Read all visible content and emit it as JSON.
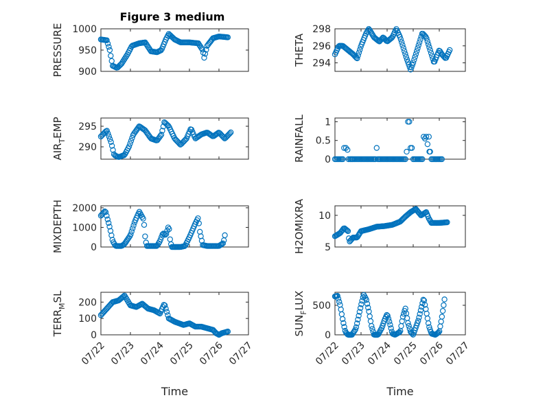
{
  "figure": {
    "title": "Figure 3 medium",
    "marker_color": "#0072bd"
  },
  "chart_data": [
    {
      "type": "scatter",
      "title": "Figure 3 medium",
      "ylabel": {
        "parts": [
          [
            "PRESSURE",
            ""
          ]
        ]
      },
      "xlabel": "",
      "xlim": [
        0,
        5
      ],
      "ylim": [
        900,
        1000
      ],
      "xticks": [
        0,
        1,
        2,
        3,
        4,
        5
      ],
      "xtick_labels": [],
      "yticks": [
        900,
        950,
        1000
      ],
      "ytick_labels": [
        "900",
        "950",
        "1000"
      ],
      "grid": true,
      "anchors": [
        [
          0.0,
          975
        ],
        [
          0.2,
          973
        ],
        [
          0.3,
          950
        ],
        [
          0.35,
          930
        ],
        [
          0.4,
          913
        ],
        [
          0.55,
          908
        ],
        [
          0.7,
          918
        ],
        [
          0.9,
          940
        ],
        [
          1.05,
          960
        ],
        [
          1.3,
          966
        ],
        [
          1.5,
          968
        ],
        [
          1.7,
          947
        ],
        [
          1.9,
          945
        ],
        [
          2.05,
          950
        ],
        [
          2.2,
          975
        ],
        [
          2.3,
          988
        ],
        [
          2.5,
          975
        ],
        [
          2.7,
          968
        ],
        [
          3.0,
          968
        ],
        [
          3.3,
          966
        ],
        [
          3.45,
          950
        ],
        [
          3.5,
          932
        ],
        [
          3.6,
          960
        ],
        [
          3.8,
          978
        ],
        [
          4.0,
          982
        ],
        [
          4.3,
          980
        ]
      ],
      "count": 130
    },
    {
      "type": "scatter",
      "title": "",
      "ylabel": {
        "parts": [
          [
            "THETA",
            ""
          ]
        ]
      },
      "xlabel": "",
      "xlim": [
        0,
        5
      ],
      "ylim": [
        293,
        298
      ],
      "xticks": [
        0,
        1,
        2,
        3,
        4,
        5
      ],
      "xtick_labels": [],
      "yticks": [
        294,
        296,
        298
      ],
      "ytick_labels": [
        "294",
        "296",
        "298"
      ],
      "grid": true,
      "anchors": [
        [
          0.0,
          295
        ],
        [
          0.15,
          296
        ],
        [
          0.3,
          296
        ],
        [
          0.5,
          295.5
        ],
        [
          0.7,
          295
        ],
        [
          0.85,
          294.5
        ],
        [
          1.0,
          296
        ],
        [
          1.2,
          297.5
        ],
        [
          1.3,
          298
        ],
        [
          1.5,
          297
        ],
        [
          1.7,
          296.5
        ],
        [
          1.85,
          297
        ],
        [
          2.0,
          296.5
        ],
        [
          2.2,
          297
        ],
        [
          2.35,
          298
        ],
        [
          2.5,
          297
        ],
        [
          2.6,
          296
        ],
        [
          2.75,
          294.5
        ],
        [
          2.9,
          293.2
        ],
        [
          3.0,
          294
        ],
        [
          3.2,
          296
        ],
        [
          3.35,
          297.5
        ],
        [
          3.5,
          297
        ],
        [
          3.65,
          295.5
        ],
        [
          3.8,
          294
        ],
        [
          4.0,
          295.5
        ],
        [
          4.1,
          295
        ],
        [
          4.25,
          294.5
        ],
        [
          4.4,
          295.5
        ]
      ],
      "count": 130
    },
    {
      "type": "scatter",
      "title": "",
      "ylabel": {
        "parts": [
          [
            "AIR",
            ""
          ],
          [
            "T",
            "sub"
          ],
          [
            "EMP",
            ""
          ]
        ]
      },
      "xlabel": "",
      "xlim": [
        0,
        5
      ],
      "ylim": [
        287,
        297
      ],
      "xticks": [
        0,
        1,
        2,
        3,
        4,
        5
      ],
      "xtick_labels": [],
      "yticks": [
        290,
        295
      ],
      "ytick_labels": [
        "290",
        "295"
      ],
      "grid": true,
      "anchors": [
        [
          0.0,
          292.5
        ],
        [
          0.2,
          294
        ],
        [
          0.35,
          291
        ],
        [
          0.45,
          288
        ],
        [
          0.6,
          287.5
        ],
        [
          0.8,
          288
        ],
        [
          0.95,
          290
        ],
        [
          1.1,
          293
        ],
        [
          1.3,
          295
        ],
        [
          1.5,
          294
        ],
        [
          1.7,
          292
        ],
        [
          1.9,
          291.5
        ],
        [
          2.05,
          293
        ],
        [
          2.15,
          296
        ],
        [
          2.3,
          295
        ],
        [
          2.5,
          292
        ],
        [
          2.7,
          290.5
        ],
        [
          2.9,
          292
        ],
        [
          3.05,
          294.5
        ],
        [
          3.2,
          292
        ],
        [
          3.4,
          293
        ],
        [
          3.6,
          293.5
        ],
        [
          3.8,
          292.5
        ],
        [
          4.0,
          293.5
        ],
        [
          4.2,
          292
        ],
        [
          4.4,
          293.5
        ]
      ],
      "count": 130
    },
    {
      "type": "scatter",
      "title": "",
      "ylabel": {
        "parts": [
          [
            "RAINFALL",
            ""
          ]
        ]
      },
      "xlabel": "",
      "xlim": [
        0,
        5
      ],
      "ylim": [
        0,
        1.1
      ],
      "xticks": [
        0,
        1,
        2,
        3,
        4,
        5
      ],
      "xtick_labels": [],
      "yticks": [
        0,
        0.5,
        1
      ],
      "ytick_labels": [
        "0",
        "0.5",
        "1"
      ],
      "grid": true,
      "points": [
        [
          0.0,
          0
        ],
        [
          0.05,
          0
        ],
        [
          0.1,
          0
        ],
        [
          0.15,
          0
        ],
        [
          0.2,
          0
        ],
        [
          0.25,
          0
        ],
        [
          0.3,
          0
        ],
        [
          0.35,
          0.3
        ],
        [
          0.42,
          0.3
        ],
        [
          0.48,
          0.25
        ],
        [
          0.52,
          0
        ],
        [
          0.58,
          0
        ],
        [
          0.62,
          0
        ],
        [
          0.66,
          0
        ],
        [
          0.7,
          0
        ],
        [
          0.75,
          0
        ],
        [
          0.8,
          0
        ],
        [
          0.85,
          0
        ],
        [
          0.9,
          0
        ],
        [
          0.95,
          0
        ],
        [
          1.0,
          0
        ],
        [
          1.05,
          0
        ],
        [
          1.1,
          0
        ],
        [
          1.15,
          0
        ],
        [
          1.2,
          0
        ],
        [
          1.25,
          0
        ],
        [
          1.3,
          0
        ],
        [
          1.35,
          0
        ],
        [
          1.4,
          0
        ],
        [
          1.45,
          0
        ],
        [
          1.5,
          0
        ],
        [
          1.55,
          0
        ],
        [
          1.6,
          0.3
        ],
        [
          1.65,
          0
        ],
        [
          1.7,
          0
        ],
        [
          1.75,
          0
        ],
        [
          1.8,
          0
        ],
        [
          1.85,
          0
        ],
        [
          1.9,
          0
        ],
        [
          1.95,
          0
        ],
        [
          2.0,
          0
        ],
        [
          2.05,
          0
        ],
        [
          2.1,
          0
        ],
        [
          2.15,
          0
        ],
        [
          2.2,
          0
        ],
        [
          2.25,
          0
        ],
        [
          2.3,
          0
        ],
        [
          2.35,
          0
        ],
        [
          2.4,
          0
        ],
        [
          2.45,
          0
        ],
        [
          2.5,
          0
        ],
        [
          2.55,
          0
        ],
        [
          2.6,
          0
        ],
        [
          2.65,
          0
        ],
        [
          2.7,
          0
        ],
        [
          2.75,
          0.2
        ],
        [
          2.8,
          1.0
        ],
        [
          2.85,
          1.0
        ],
        [
          2.9,
          0.3
        ],
        [
          2.95,
          0.3
        ],
        [
          3.0,
          0
        ],
        [
          3.05,
          0
        ],
        [
          3.1,
          0
        ],
        [
          3.15,
          0
        ],
        [
          3.2,
          0
        ],
        [
          3.25,
          0
        ],
        [
          3.3,
          0
        ],
        [
          3.35,
          0
        ],
        [
          3.4,
          0.6
        ],
        [
          3.45,
          0.55
        ],
        [
          3.5,
          0.6
        ],
        [
          3.55,
          0.4
        ],
        [
          3.6,
          0.6
        ],
        [
          3.62,
          0.2
        ],
        [
          3.65,
          0.2
        ],
        [
          3.7,
          0
        ],
        [
          3.75,
          0
        ],
        [
          3.8,
          0
        ],
        [
          3.85,
          0
        ],
        [
          3.9,
          0
        ],
        [
          3.95,
          0
        ],
        [
          4.0,
          0
        ],
        [
          4.05,
          0
        ],
        [
          4.1,
          0
        ]
      ]
    },
    {
      "type": "scatter",
      "title": "",
      "ylabel": {
        "parts": [
          [
            "MIXDEPTH",
            ""
          ]
        ]
      },
      "xlabel": "",
      "xlim": [
        0,
        5
      ],
      "ylim": [
        0,
        2100
      ],
      "xticks": [
        0,
        1,
        2,
        3,
        4,
        5
      ],
      "xtick_labels": [],
      "yticks": [
        0,
        1000,
        2000
      ],
      "ytick_labels": [
        "0",
        "1000",
        "2000"
      ],
      "grid": true,
      "anchors": [
        [
          0.0,
          1600
        ],
        [
          0.15,
          1850
        ],
        [
          0.3,
          1000
        ],
        [
          0.4,
          300
        ],
        [
          0.5,
          50
        ],
        [
          0.7,
          50
        ],
        [
          0.8,
          150
        ],
        [
          1.0,
          600
        ],
        [
          1.15,
          1300
        ],
        [
          1.3,
          1800
        ],
        [
          1.45,
          1400
        ],
        [
          1.5,
          500
        ],
        [
          1.55,
          50
        ],
        [
          1.75,
          50
        ],
        [
          1.9,
          50
        ],
        [
          2.0,
          300
        ],
        [
          2.1,
          700
        ],
        [
          2.2,
          600
        ],
        [
          2.3,
          1100
        ],
        [
          2.35,
          300
        ],
        [
          2.4,
          0
        ],
        [
          2.7,
          0
        ],
        [
          2.85,
          50
        ],
        [
          3.0,
          500
        ],
        [
          3.2,
          1200
        ],
        [
          3.3,
          1500
        ],
        [
          3.35,
          800
        ],
        [
          3.45,
          100
        ],
        [
          3.6,
          50
        ],
        [
          4.0,
          50
        ],
        [
          4.15,
          200
        ],
        [
          4.2,
          600
        ]
      ],
      "count": 130
    },
    {
      "type": "scatter",
      "title": "",
      "ylabel": {
        "parts": [
          [
            "H2OMIXRA",
            ""
          ]
        ]
      },
      "xlabel": "",
      "xlim": [
        0,
        5
      ],
      "ylim": [
        5,
        11.5
      ],
      "xticks": [
        0,
        1,
        2,
        3,
        4,
        5
      ],
      "xtick_labels": [],
      "yticks": [
        5,
        10
      ],
      "ytick_labels": [
        "5",
        "10"
      ],
      "grid": true,
      "anchors": [
        [
          0.0,
          6.7
        ],
        [
          0.2,
          7.2
        ],
        [
          0.35,
          8.0
        ],
        [
          0.5,
          7.5
        ],
        [
          0.55,
          5.8
        ],
        [
          0.7,
          6.5
        ],
        [
          0.85,
          6.5
        ],
        [
          1.0,
          7.5
        ],
        [
          1.3,
          7.8
        ],
        [
          1.6,
          8.2
        ],
        [
          1.9,
          8.3
        ],
        [
          2.2,
          8.5
        ],
        [
          2.5,
          9.0
        ],
        [
          2.7,
          9.8
        ],
        [
          2.9,
          10.5
        ],
        [
          3.1,
          11.0
        ],
        [
          3.3,
          10.0
        ],
        [
          3.5,
          10.5
        ],
        [
          3.6,
          9.5
        ],
        [
          3.7,
          8.8
        ],
        [
          4.0,
          8.8
        ],
        [
          4.3,
          8.9
        ]
      ],
      "count": 130
    },
    {
      "type": "scatter",
      "title": "",
      "ylabel": {
        "parts": [
          [
            "TERR",
            ""
          ],
          [
            "M",
            "sub"
          ],
          [
            "SL",
            ""
          ]
        ]
      },
      "xlabel": "Time",
      "xlim": [
        0,
        5
      ],
      "ylim": [
        0,
        260
      ],
      "xticks": [
        0,
        1,
        2,
        3,
        4,
        5
      ],
      "xtick_labels": [
        "07/22",
        "07/23",
        "07/24",
        "07/25",
        "07/26",
        "07/27"
      ],
      "yticks": [
        0,
        100,
        200
      ],
      "ytick_labels": [
        "0",
        "100",
        "200"
      ],
      "grid": true,
      "anchors": [
        [
          0.0,
          120
        ],
        [
          0.2,
          160
        ],
        [
          0.4,
          200
        ],
        [
          0.6,
          210
        ],
        [
          0.8,
          240
        ],
        [
          1.0,
          180
        ],
        [
          1.2,
          170
        ],
        [
          1.4,
          190
        ],
        [
          1.6,
          160
        ],
        [
          1.8,
          150
        ],
        [
          2.0,
          130
        ],
        [
          2.15,
          190
        ],
        [
          2.3,
          100
        ],
        [
          2.5,
          80
        ],
        [
          2.8,
          60
        ],
        [
          3.0,
          70
        ],
        [
          3.2,
          50
        ],
        [
          3.4,
          50
        ],
        [
          3.6,
          40
        ],
        [
          3.8,
          30
        ],
        [
          3.9,
          10
        ],
        [
          4.0,
          0
        ],
        [
          4.1,
          10
        ],
        [
          4.3,
          20
        ]
      ],
      "count": 130
    },
    {
      "type": "scatter",
      "title": "",
      "ylabel": {
        "parts": [
          [
            "SUN",
            ""
          ],
          [
            "F",
            "sub"
          ],
          [
            "LUX",
            ""
          ]
        ]
      },
      "xlabel": "Time",
      "xlim": [
        0,
        5
      ],
      "ylim": [
        0,
        720
      ],
      "xticks": [
        0,
        1,
        2,
        3,
        4,
        5
      ],
      "xtick_labels": [
        "07/22",
        "07/23",
        "07/24",
        "07/25",
        "07/26",
        "07/27"
      ],
      "yticks": [
        0,
        500
      ],
      "ytick_labels": [
        "0",
        "500"
      ],
      "grid": true,
      "anchors": [
        [
          0.0,
          650
        ],
        [
          0.1,
          660
        ],
        [
          0.2,
          500
        ],
        [
          0.3,
          250
        ],
        [
          0.4,
          50
        ],
        [
          0.5,
          0
        ],
        [
          0.65,
          0
        ],
        [
          0.8,
          100
        ],
        [
          1.0,
          500
        ],
        [
          1.1,
          680
        ],
        [
          1.2,
          600
        ],
        [
          1.3,
          400
        ],
        [
          1.4,
          150
        ],
        [
          1.5,
          0
        ],
        [
          1.65,
          0
        ],
        [
          1.8,
          120
        ],
        [
          1.9,
          250
        ],
        [
          2.0,
          350
        ],
        [
          2.1,
          200
        ],
        [
          2.2,
          20
        ],
        [
          2.3,
          0
        ],
        [
          2.5,
          50
        ],
        [
          2.6,
          300
        ],
        [
          2.7,
          450
        ],
        [
          2.8,
          200
        ],
        [
          2.9,
          50
        ],
        [
          3.0,
          0
        ],
        [
          3.2,
          250
        ],
        [
          3.4,
          620
        ],
        [
          3.5,
          400
        ],
        [
          3.6,
          150
        ],
        [
          3.7,
          20
        ],
        [
          3.85,
          0
        ],
        [
          4.0,
          50
        ],
        [
          4.1,
          300
        ],
        [
          4.2,
          600
        ]
      ],
      "count": 130
    }
  ]
}
